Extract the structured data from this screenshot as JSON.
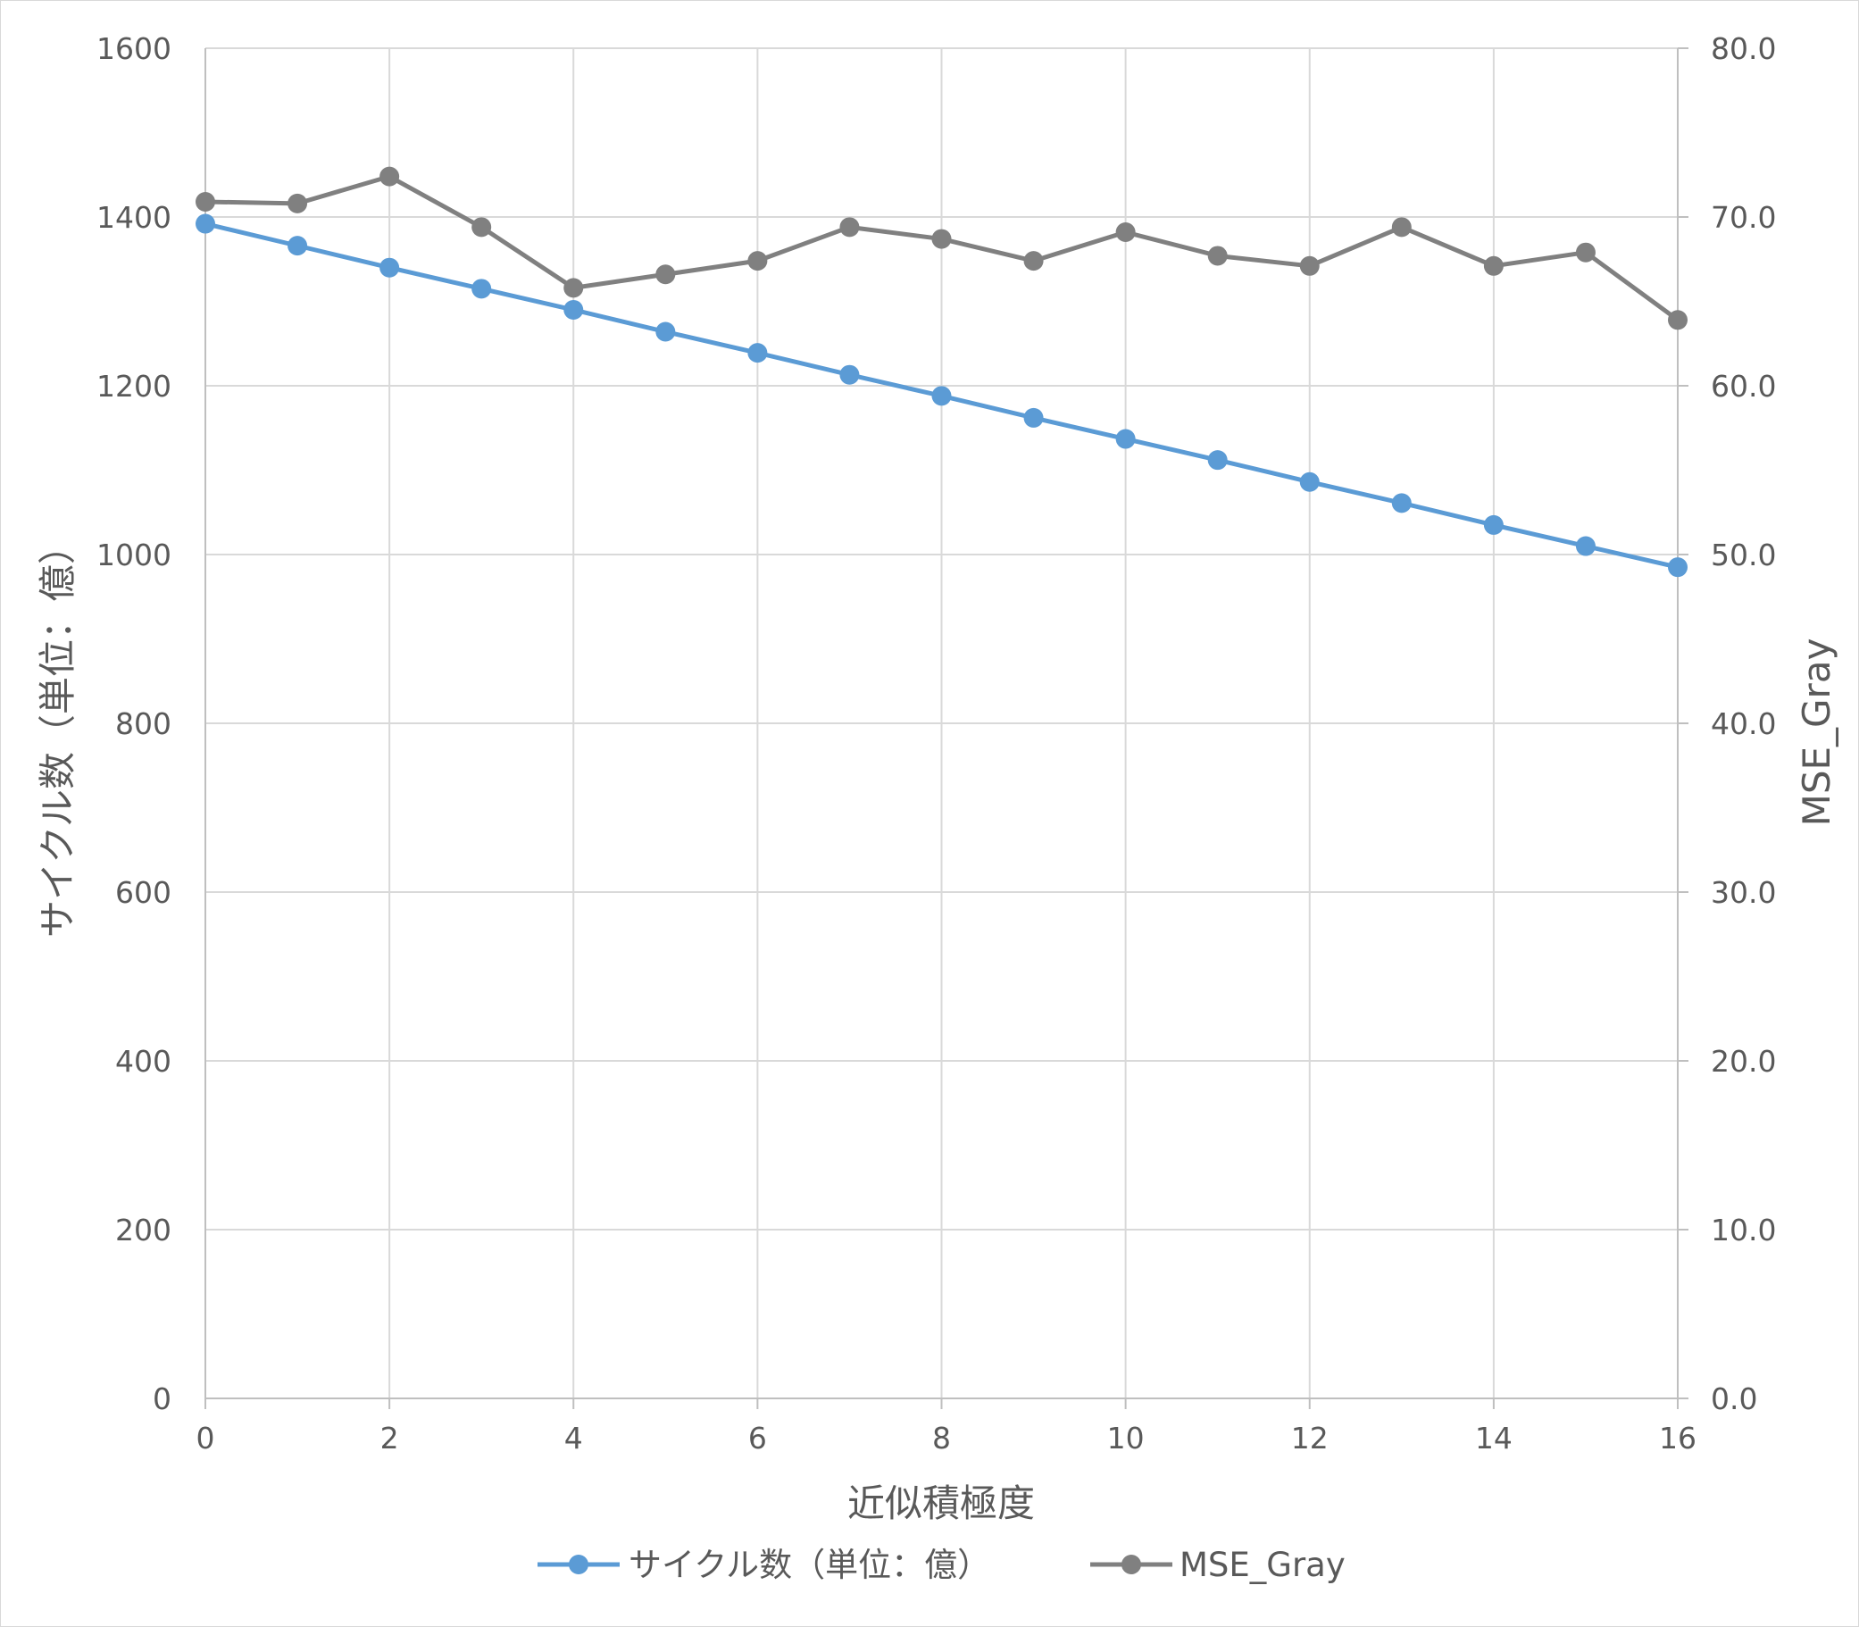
{
  "chart_data": {
    "type": "line",
    "x": [
      0,
      1,
      2,
      3,
      4,
      5,
      6,
      7,
      8,
      9,
      10,
      11,
      12,
      13,
      14,
      15,
      16
    ],
    "xlim": [
      0,
      16
    ],
    "x_ticks": [
      0,
      2,
      4,
      6,
      8,
      10,
      12,
      14,
      16
    ],
    "xlabel": "近似積極度",
    "ylabel_left": "サイクル数（単位：億）",
    "ylabel_right": "MSE_Gray",
    "ylim_left": [
      0,
      1600
    ],
    "ylim_right": [
      0,
      80
    ],
    "y_ticks_left": [
      "0",
      "200",
      "400",
      "600",
      "800",
      "1000",
      "1200",
      "1400",
      "1600"
    ],
    "y_ticks_right": [
      "0.0",
      "10.0",
      "20.0",
      "30.0",
      "40.0",
      "50.0",
      "60.0",
      "70.0",
      "80.0"
    ],
    "grid": true,
    "legend_position": "bottom",
    "series": [
      {
        "name": "サイクル数（単位：億）",
        "axis": "left",
        "color": "#5b9bd5",
        "marker": "circle",
        "values": [
          1392,
          1366,
          1340,
          1315,
          1290,
          1264,
          1239,
          1213,
          1188,
          1162,
          1137,
          1112,
          1086,
          1061,
          1035,
          1010,
          985
        ]
      },
      {
        "name": "MSE_Gray",
        "axis": "right",
        "color": "#808080",
        "marker": "circle",
        "values": [
          70.9,
          70.8,
          72.4,
          69.4,
          65.8,
          66.6,
          67.4,
          69.4,
          68.7,
          67.4,
          69.1,
          67.7,
          67.1,
          69.4,
          67.1,
          67.9,
          63.9
        ]
      }
    ]
  }
}
